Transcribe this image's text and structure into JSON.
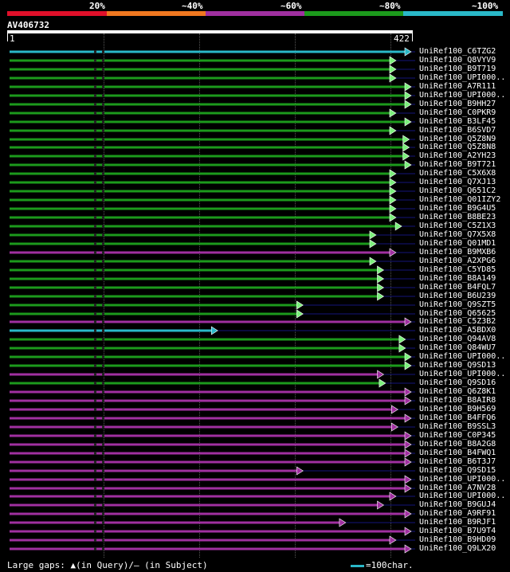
{
  "colors": {
    "bg": "#000000",
    "cyan": "#2ab8c8",
    "green": "#1c9a1c",
    "purple": "#a030a0",
    "red": "#e0102a",
    "orange": "#f07820",
    "navy": "#14147a",
    "arrow_green": "#7cf07c",
    "gap": "#444444"
  },
  "legend": [
    {
      "label": "20%",
      "color": "#e0102a"
    },
    {
      "label": "~40%",
      "color": "#f07820"
    },
    {
      "label": "~60%",
      "color": "#a030a0"
    },
    {
      "label": "~80%",
      "color": "#1c9a1c"
    },
    {
      "label": "~100%",
      "color": "#2ab8c8"
    }
  ],
  "query": {
    "id": "AV406732",
    "start": "1",
    "end": "422",
    "length": 422
  },
  "footer": {
    "gaps_text": "Large gaps: ▲(in Query)/– (in Subject)",
    "scale_text": "=100char."
  },
  "hits": [
    {
      "name": "UniRef100_C6TZG2",
      "color": "cyan",
      "start": 1,
      "end": 422
    },
    {
      "name": "UniRef100_Q8VYV9",
      "color": "green",
      "start": 1,
      "end": 406
    },
    {
      "name": "UniRef100_B9T719",
      "color": "green",
      "start": 1,
      "end": 406
    },
    {
      "name": "UniRef100_UPI000..",
      "color": "green",
      "start": 1,
      "end": 406
    },
    {
      "name": "UniRef100_A7R111",
      "color": "green",
      "start": 1,
      "end": 422
    },
    {
      "name": "UniRef100_UPI000..",
      "color": "green",
      "start": 1,
      "end": 422
    },
    {
      "name": "UniRef100_B9HH27",
      "color": "green",
      "start": 1,
      "end": 422
    },
    {
      "name": "UniRef100_C0PKR9",
      "color": "green",
      "start": 1,
      "end": 406
    },
    {
      "name": "UniRef100_B3LF45",
      "color": "green",
      "start": 1,
      "end": 422
    },
    {
      "name": "UniRef100_B6SVD7",
      "color": "green",
      "start": 1,
      "end": 406
    },
    {
      "name": "UniRef100_Q5Z8N9",
      "color": "green",
      "start": 1,
      "end": 420
    },
    {
      "name": "UniRef100_Q5Z8N8",
      "color": "green",
      "start": 1,
      "end": 420
    },
    {
      "name": "UniRef100_A2YH23",
      "color": "green",
      "start": 1,
      "end": 420
    },
    {
      "name": "UniRef100_B9T721",
      "color": "green",
      "start": 1,
      "end": 422
    },
    {
      "name": "UniRef100_C5X6X8",
      "color": "green",
      "start": 1,
      "end": 406
    },
    {
      "name": "UniRef100_Q7XJ13",
      "color": "green",
      "start": 1,
      "end": 406
    },
    {
      "name": "UniRef100_Q651C2",
      "color": "green",
      "start": 1,
      "end": 406
    },
    {
      "name": "UniRef100_Q01IZY2",
      "color": "green",
      "start": 1,
      "end": 406
    },
    {
      "name": "UniRef100_B9G4U5",
      "color": "green",
      "start": 1,
      "end": 406
    },
    {
      "name": "UniRef100_B8BE23",
      "color": "green",
      "start": 1,
      "end": 406
    },
    {
      "name": "UniRef100_C5Z1X3",
      "color": "green",
      "start": 1,
      "end": 412
    },
    {
      "name": "UniRef100_Q7X5X8",
      "color": "green",
      "start": 1,
      "end": 385
    },
    {
      "name": "UniRef100_Q01MD1",
      "color": "green",
      "start": 1,
      "end": 385
    },
    {
      "name": "UniRef100_B9MXB6",
      "color": "purple",
      "start": 1,
      "end": 406
    },
    {
      "name": "UniRef100_A2XPG6",
      "color": "green",
      "start": 1,
      "end": 385
    },
    {
      "name": "UniRef100_C5YD85",
      "color": "green",
      "start": 1,
      "end": 393
    },
    {
      "name": "UniRef100_B8A149",
      "color": "green",
      "start": 1,
      "end": 393
    },
    {
      "name": "UniRef100_B4FQL7",
      "color": "green",
      "start": 1,
      "end": 393
    },
    {
      "name": "UniRef100_B6U239",
      "color": "green",
      "start": 1,
      "end": 393
    },
    {
      "name": "UniRef100_Q9SZT5",
      "color": "green",
      "start": 1,
      "end": 308
    },
    {
      "name": "UniRef100_Q65625",
      "color": "green",
      "start": 1,
      "end": 308
    },
    {
      "name": "UniRef100_C5Z3B2",
      "color": "purple",
      "start": 1,
      "end": 422
    },
    {
      "name": "UniRef100_A5BDX0",
      "color": "cyan",
      "start": 1,
      "end": 218
    },
    {
      "name": "UniRef100_Q94AV8",
      "color": "green",
      "start": 1,
      "end": 416
    },
    {
      "name": "UniRef100_Q84WU7",
      "color": "green",
      "start": 1,
      "end": 416
    },
    {
      "name": "UniRef100_UPI000..",
      "color": "green",
      "start": 1,
      "end": 422
    },
    {
      "name": "UniRef100_Q9SD13",
      "color": "green",
      "start": 1,
      "end": 422
    },
    {
      "name": "UniRef100_UPI000..",
      "color": "purple",
      "start": 1,
      "end": 393
    },
    {
      "name": "UniRef100_Q9SD16",
      "color": "green",
      "start": 1,
      "end": 395
    },
    {
      "name": "UniRef100_Q6Z8K1",
      "color": "purple",
      "start": 1,
      "end": 422
    },
    {
      "name": "UniRef100_B8AIR8",
      "color": "purple",
      "start": 1,
      "end": 422
    },
    {
      "name": "UniRef100_B9H569",
      "color": "purple",
      "start": 1,
      "end": 408
    },
    {
      "name": "UniRef100_B4FFQ6",
      "color": "purple",
      "start": 1,
      "end": 422
    },
    {
      "name": "UniRef100_B9SSL3",
      "color": "purple",
      "start": 1,
      "end": 408
    },
    {
      "name": "UniRef100_C0P345",
      "color": "purple",
      "start": 1,
      "end": 422
    },
    {
      "name": "UniRef100_B8A2G8",
      "color": "purple",
      "start": 1,
      "end": 422
    },
    {
      "name": "UniRef100_B4FWQ1",
      "color": "purple",
      "start": 1,
      "end": 422
    },
    {
      "name": "UniRef100_B6T3J7",
      "color": "purple",
      "start": 1,
      "end": 422
    },
    {
      "name": "UniRef100_Q9SD15",
      "color": "purple",
      "start": 1,
      "end": 308
    },
    {
      "name": "UniRef100_UPI000..",
      "color": "purple",
      "start": 1,
      "end": 422
    },
    {
      "name": "UniRef100_A7NV28",
      "color": "purple",
      "start": 1,
      "end": 422
    },
    {
      "name": "UniRef100_UPI000..",
      "color": "purple",
      "start": 1,
      "end": 406
    },
    {
      "name": "UniRef100_B9GUJ4",
      "color": "purple",
      "start": 1,
      "end": 393
    },
    {
      "name": "UniRef100_A9RF91",
      "color": "purple",
      "start": 1,
      "end": 422
    },
    {
      "name": "UniRef100_B9RJF1",
      "color": "purple",
      "start": 1,
      "end": 353
    },
    {
      "name": "UniRef100_B7U9T4",
      "color": "purple",
      "start": 1,
      "end": 422
    },
    {
      "name": "UniRef100_B9HD09",
      "color": "purple",
      "start": 1,
      "end": 406
    },
    {
      "name": "UniRef100_Q9LX20",
      "color": "purple",
      "start": 1,
      "end": 422
    }
  ]
}
